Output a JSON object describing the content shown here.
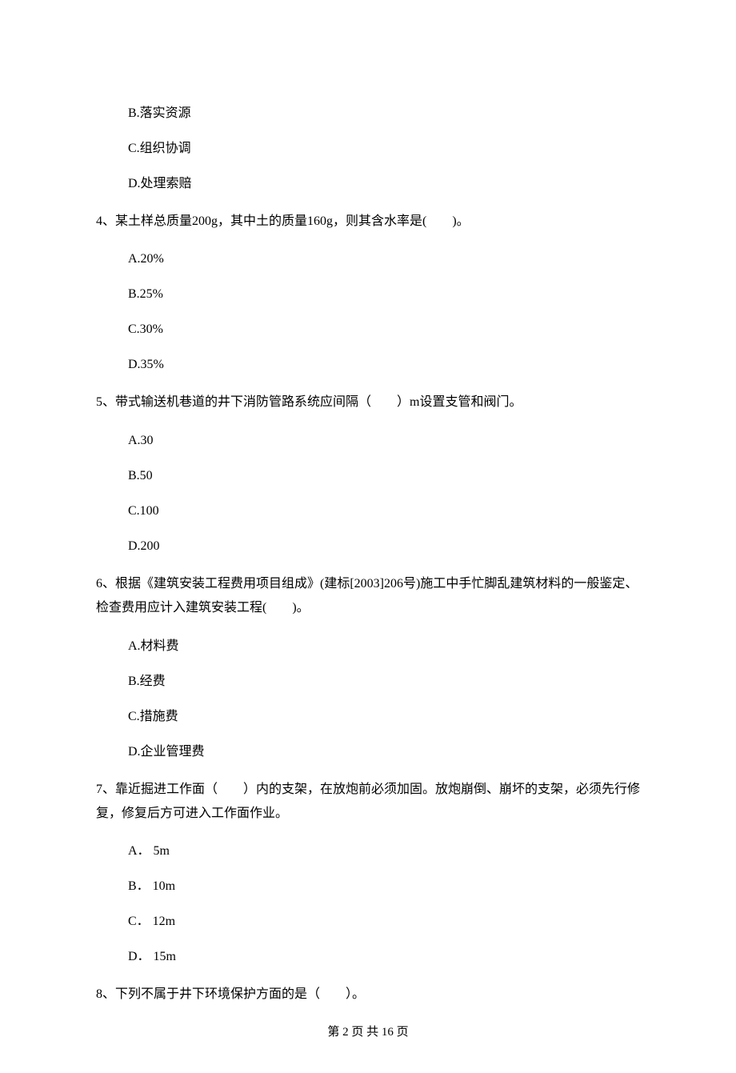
{
  "q3": {
    "optB": "B.落实资源",
    "optC": "C.组织协调",
    "optD": "D.处理索赔"
  },
  "q4": {
    "text": "4、某土样总质量200g，其中土的质量160g，则其含水率是(　　)。",
    "optA": "A.20%",
    "optB": "B.25%",
    "optC": "C.30%",
    "optD": "D.35%"
  },
  "q5": {
    "text": "5、带式输送机巷道的井下消防管路系统应间隔（　　）m设置支管和阀门。",
    "optA": "A.30",
    "optB": "B.50",
    "optC": "C.100",
    "optD": "D.200"
  },
  "q6": {
    "text": "6、根据《建筑安装工程费用项目组成》(建标[2003]206号)施工中手忙脚乱建筑材料的一般鉴定、检查费用应计入建筑安装工程(　　)。",
    "optA": "A.材料费",
    "optB": "B.经费",
    "optC": "C.措施费",
    "optD": "D.企业管理费"
  },
  "q7": {
    "text": "7、靠近掘进工作面（　　）内的支架，在放炮前必须加固。放炮崩倒、崩坏的支架，必须先行修复，修复后方可进入工作面作业。",
    "optA": "A． 5m",
    "optB": "B． 10m",
    "optC": "C． 12m",
    "optD": "D． 15m"
  },
  "q8": {
    "text": "8、下列不属于井下环境保护方面的是（　　）。"
  },
  "footer": "第 2 页 共 16 页"
}
